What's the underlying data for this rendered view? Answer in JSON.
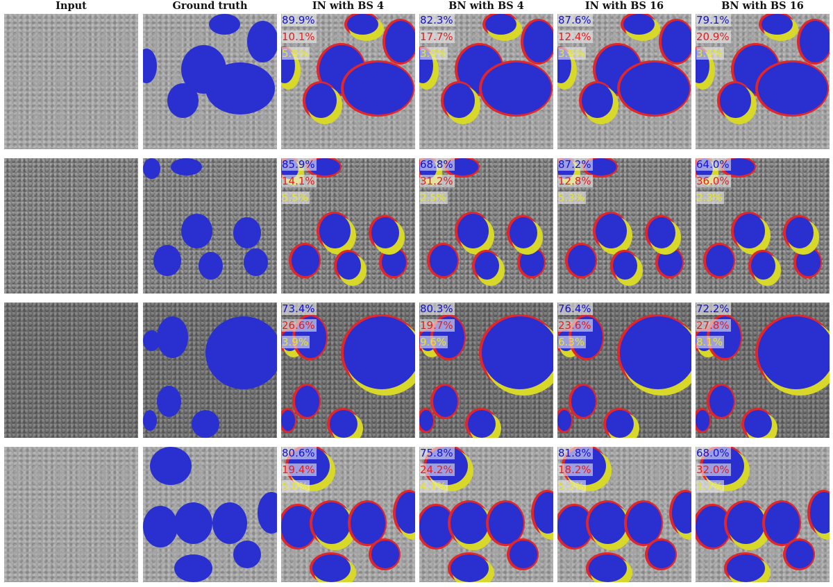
{
  "figure": {
    "column_headers": [
      "Input",
      "Ground truth",
      "IN with BS 4",
      "BN with BS 4",
      "IN with BS 16",
      "BN with BS 16"
    ],
    "legend_colors": {
      "true_positive": "#1010d8",
      "false_negative": "#e81a1a",
      "false_positive": "#e8e81a",
      "mask_blue": "#2a2fd0"
    },
    "rows": [
      {
        "index": 1,
        "results": [
          {
            "method": "IN with BS 4",
            "blue": "89.9%",
            "red": "10.1%",
            "yellow": "5.8%"
          },
          {
            "method": "BN with BS 4",
            "blue": "82.3%",
            "red": "17.7%",
            "yellow": "3.0%"
          },
          {
            "method": "IN with BS 16",
            "blue": "87.6%",
            "red": "12.4%",
            "yellow": "3.8%"
          },
          {
            "method": "BN with BS 16",
            "blue": "79.1%",
            "red": "20.9%",
            "yellow": "3.6%"
          }
        ]
      },
      {
        "index": 2,
        "results": [
          {
            "method": "IN with BS 4",
            "blue": "85.9%",
            "red": "14.1%",
            "yellow": "5.5%"
          },
          {
            "method": "BN with BS 4",
            "blue": "68.8%",
            "red": "31.2%",
            "yellow": "2.5%"
          },
          {
            "method": "IN with BS 16",
            "blue": "87.2%",
            "red": "12.8%",
            "yellow": "5.3%"
          },
          {
            "method": "BN with BS 16",
            "blue": "64.0%",
            "red": "36.0%",
            "yellow": "2.3%"
          }
        ]
      },
      {
        "index": 3,
        "results": [
          {
            "method": "IN with BS 4",
            "blue": "73.4%",
            "red": "26.6%",
            "yellow": "3.9%"
          },
          {
            "method": "BN with BS 4",
            "blue": "80.3%",
            "red": "19.7%",
            "yellow": "9.6%"
          },
          {
            "method": "IN with BS 16",
            "blue": "76.4%",
            "red": "23.6%",
            "yellow": "6.3%"
          },
          {
            "method": "BN with BS 16",
            "blue": "72.2%",
            "red": "27.8%",
            "yellow": "8.1%"
          }
        ]
      },
      {
        "index": 4,
        "results": [
          {
            "method": "IN with BS 4",
            "blue": "80.6%",
            "red": "19.4%",
            "yellow": "5.0%"
          },
          {
            "method": "BN with BS 4",
            "blue": "75.8%",
            "red": "24.2%",
            "yellow": "4.1%"
          },
          {
            "method": "IN with BS 16",
            "blue": "81.8%",
            "red": "18.2%",
            "yellow": "5.3%"
          },
          {
            "method": "BN with BS 16",
            "blue": "68.0%",
            "red": "32.0%",
            "yellow": "1.7%"
          }
        ]
      }
    ]
  }
}
